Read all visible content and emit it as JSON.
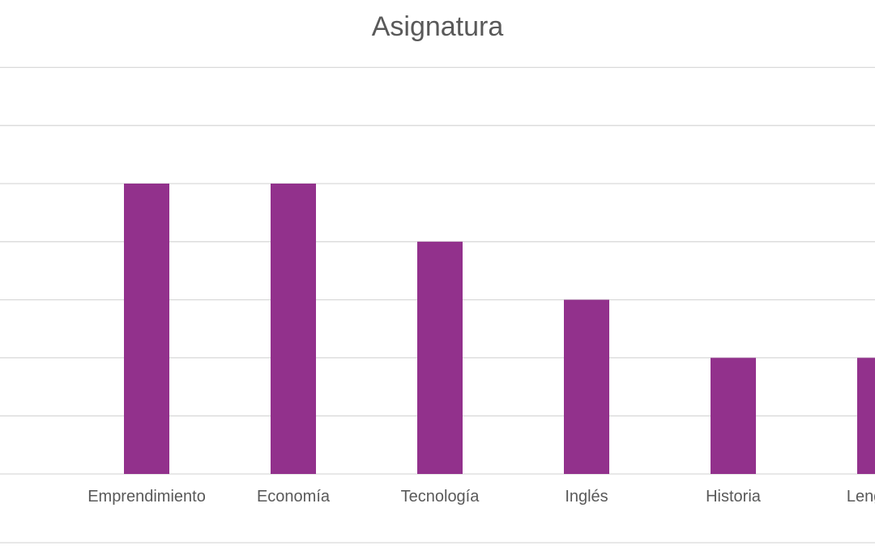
{
  "chart_data": {
    "type": "bar",
    "title": "Asignatura",
    "categories": [
      "Emprendimiento",
      "Economía",
      "Tecnología",
      "Inglés",
      "Historia",
      "Lenguaje"
    ],
    "values": [
      5,
      5,
      4,
      3,
      2,
      2
    ],
    "ylim": [
      0,
      7
    ],
    "grid": true,
    "bar_color": "#92318c",
    "gridline_color": "#d9d9d9",
    "text_color": "#595959"
  }
}
